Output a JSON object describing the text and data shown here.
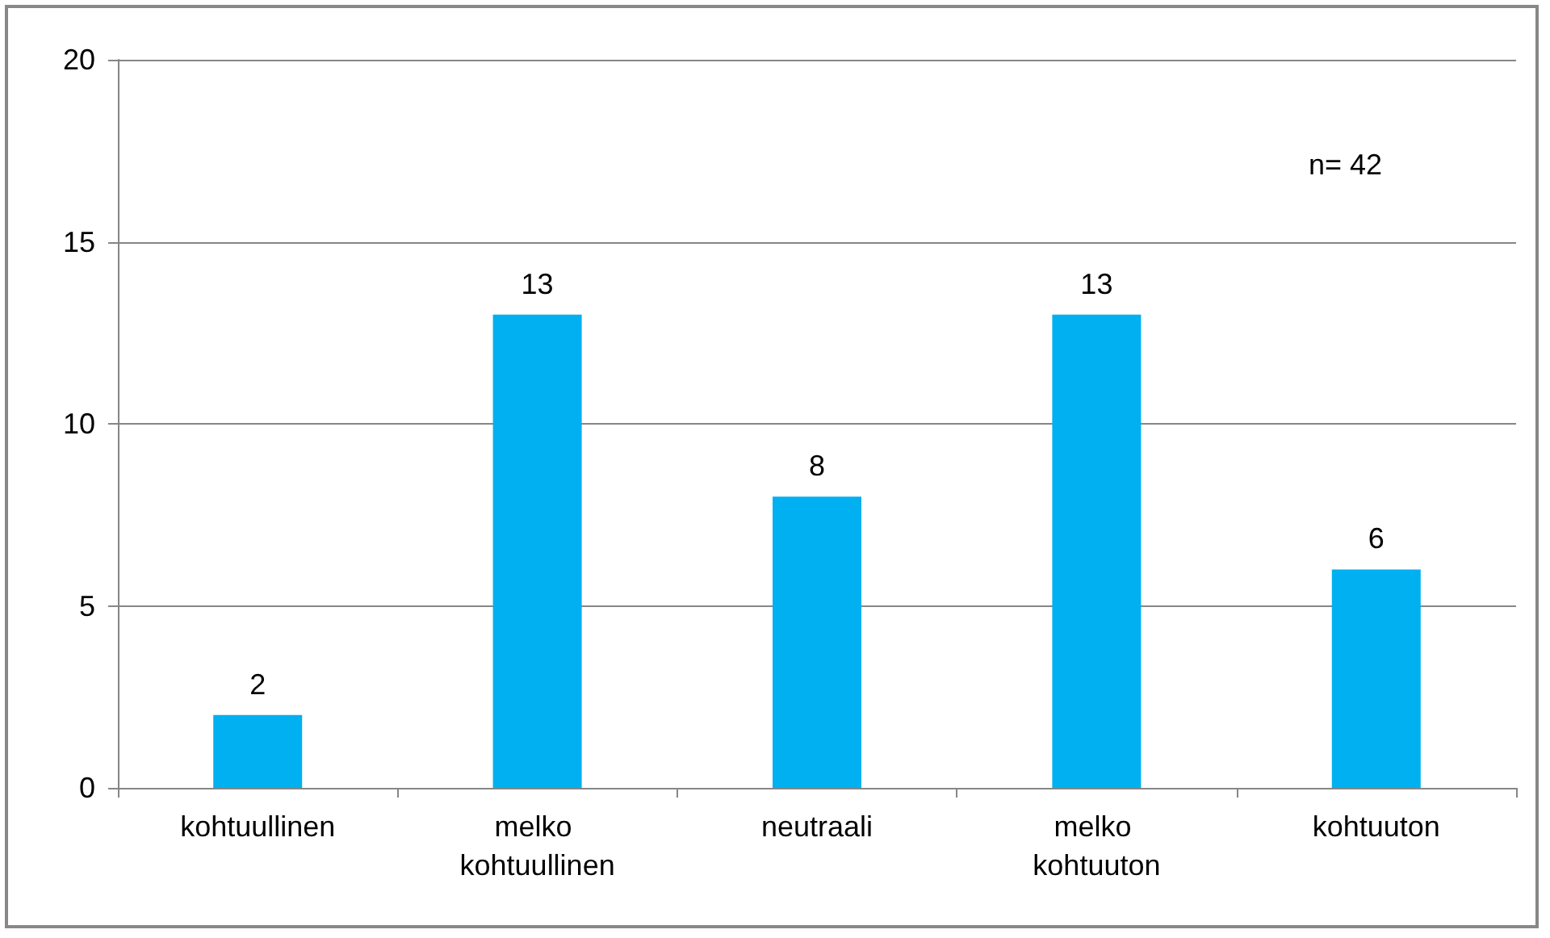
{
  "chart_data": {
    "type": "bar",
    "categories": [
      "kohtuullinen",
      "melko kohtuullinen",
      "neutraali",
      "melko kohtuuton",
      "kohtuuton"
    ],
    "values": [
      2,
      13,
      8,
      13,
      6
    ],
    "color": "#00b0f0",
    "ylim": [
      0,
      20
    ],
    "yticks": [
      0,
      5,
      10,
      15,
      20
    ],
    "grid": "y",
    "data_labels": true,
    "annotations": [
      "n= 42"
    ]
  }
}
